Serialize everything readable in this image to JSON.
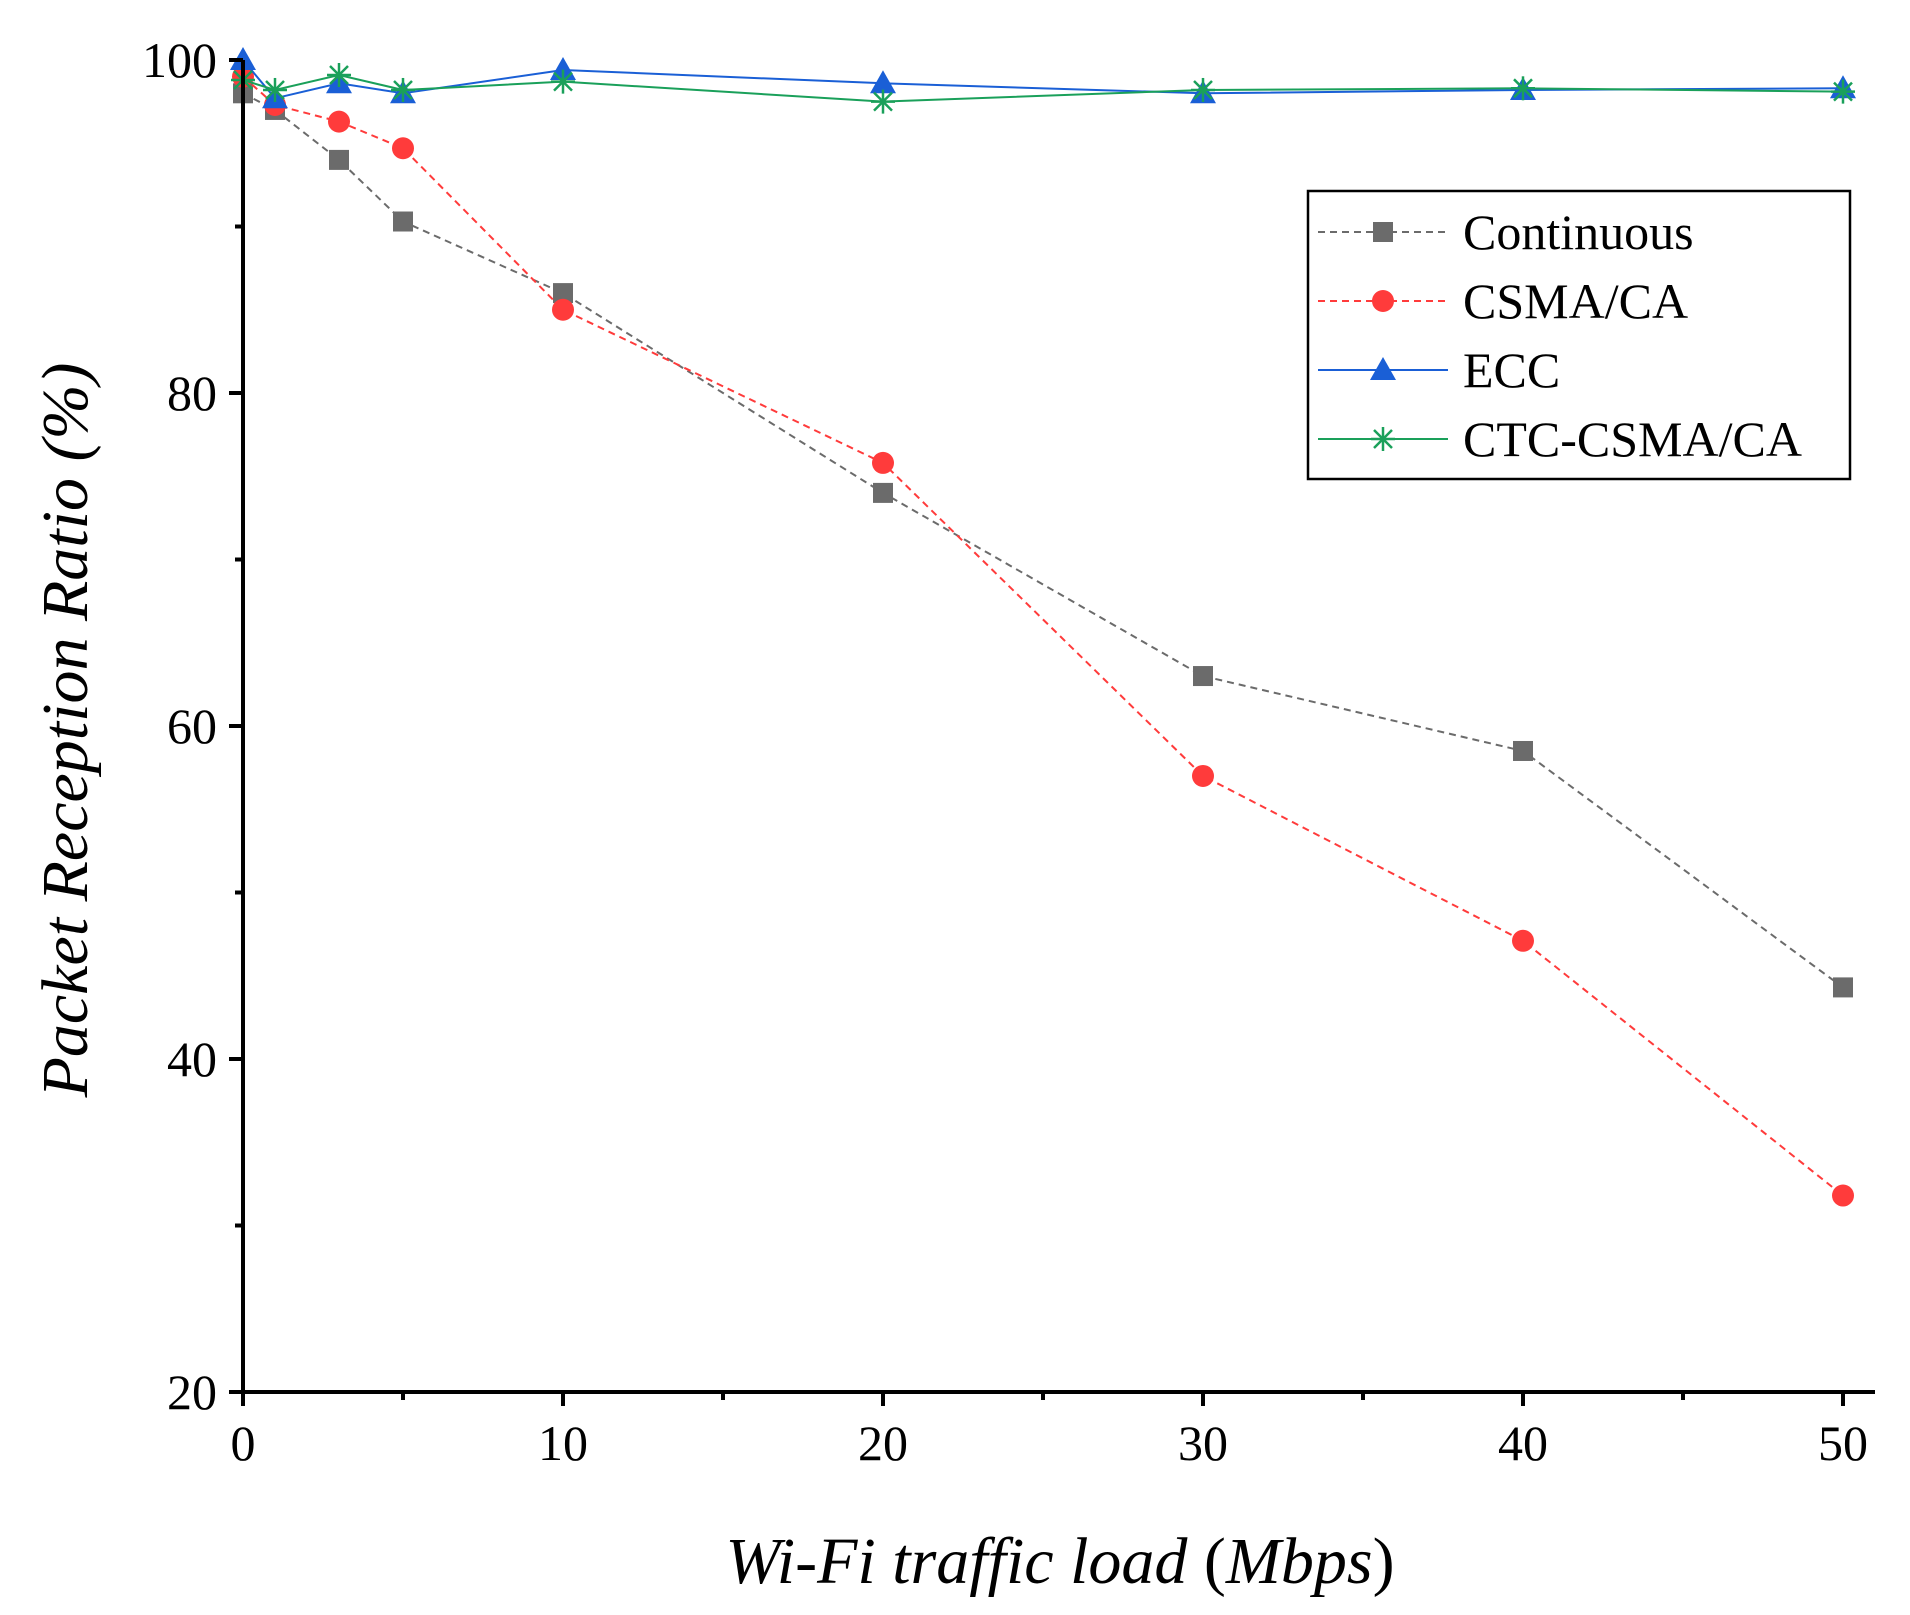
{
  "chart_data": {
    "type": "line",
    "xlabel": {
      "italic": "Wi-Fi traffic load",
      "unit": "Mbps"
    },
    "ylabel": "Packet Reception Ratio (%)",
    "xlim": [
      0,
      51
    ],
    "ylim": [
      20,
      100
    ],
    "x_ticks": [
      "0",
      "10",
      "20",
      "30",
      "40",
      "50"
    ],
    "y_ticks": [
      "20",
      "40",
      "60",
      "80",
      "100"
    ],
    "legend_position": "top-right",
    "series": [
      {
        "name": "Continuous",
        "color": "#6b6b6b",
        "line": "dashed",
        "marker": "square",
        "x": [
          0,
          1,
          3,
          5,
          10,
          20,
          30,
          40,
          50
        ],
        "y": [
          98,
          97,
          94,
          90.3,
          86,
          74,
          63,
          58.5,
          44.3
        ]
      },
      {
        "name": "CSMA/CA",
        "color": "#ff3b3b",
        "line": "dashed",
        "marker": "circle",
        "x": [
          0,
          1,
          3,
          5,
          10,
          20,
          30,
          40,
          50
        ],
        "y": [
          99,
          97.3,
          96.3,
          94.7,
          85,
          75.8,
          57,
          47.1,
          31.8
        ]
      },
      {
        "name": "ECC",
        "color": "#1a5fd6",
        "line": "solid",
        "marker": "triangle",
        "x": [
          0,
          1,
          3,
          5,
          10,
          20,
          30,
          40,
          50
        ],
        "y": [
          100,
          97.7,
          98.6,
          98,
          99.4,
          98.6,
          98,
          98.2,
          98.3
        ]
      },
      {
        "name": "CTC-CSMA/CA",
        "color": "#1aa05a",
        "line": "solid",
        "marker": "asterisk",
        "x": [
          0,
          1,
          3,
          5,
          10,
          20,
          30,
          40,
          50
        ],
        "y": [
          98.8,
          98.2,
          99.1,
          98.2,
          98.7,
          97.5,
          98.2,
          98.3,
          98.1
        ]
      }
    ]
  }
}
